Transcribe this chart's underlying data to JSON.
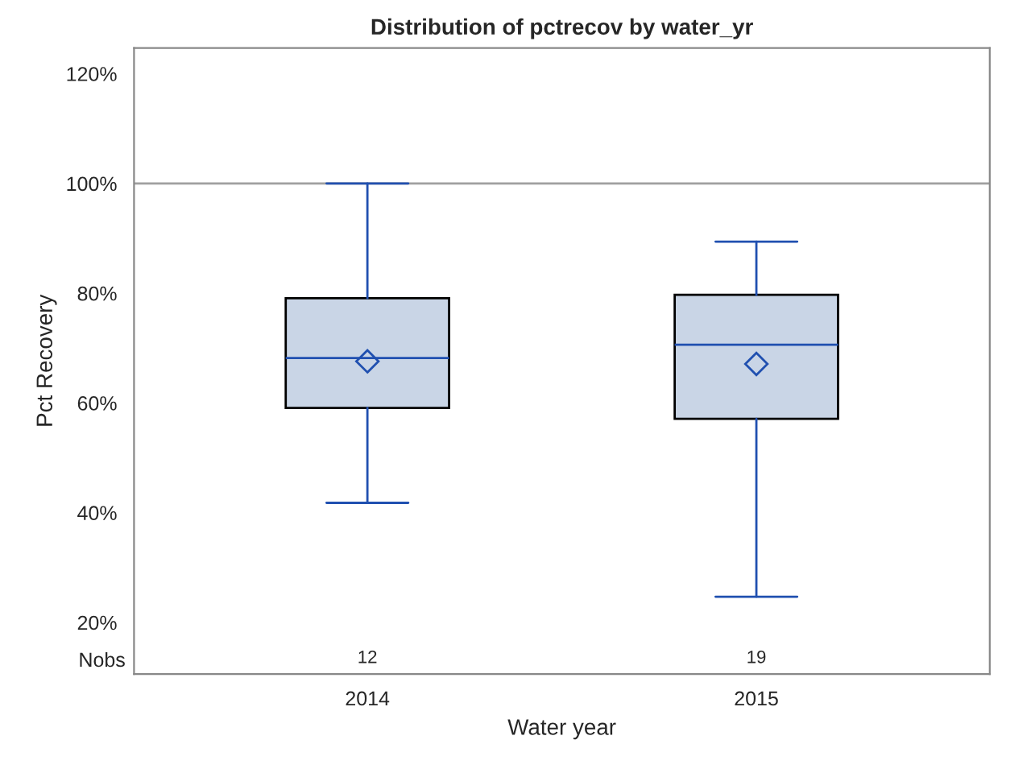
{
  "chart_data": {
    "type": "box",
    "title": "Distribution of pctrecov by water_yr",
    "xlabel": "Water year",
    "ylabel": "Pct Recovery",
    "categories": [
      "2014",
      "2015"
    ],
    "boxes": [
      {
        "low": 41.8,
        "q1": 59.1,
        "median": 68.2,
        "q3": 79.1,
        "high": 100,
        "mean": 67.6
      },
      {
        "low": 24.7,
        "q1": 57.1,
        "median": 70.6,
        "q3": 79.7,
        "high": 89.4,
        "mean": 67.1
      }
    ],
    "color": "#c9d5e6",
    "ylim": [
      10.6,
      124.7
    ],
    "yticks": [
      {
        "value": 20,
        "label": "20%"
      },
      {
        "value": 40,
        "label": "40%"
      },
      {
        "value": 60,
        "label": "60%"
      },
      {
        "value": 80,
        "label": "80%"
      },
      {
        "value": 100,
        "label": "100%"
      },
      {
        "value": 120,
        "label": "120%"
      }
    ],
    "ref_lines": [
      {
        "axis": "y",
        "value": 100,
        "color": "#a0a0a0"
      }
    ],
    "annotations": [
      "Nobs",
      "12",
      "19"
    ],
    "marker": "diamond",
    "grid": false,
    "legend": false
  }
}
